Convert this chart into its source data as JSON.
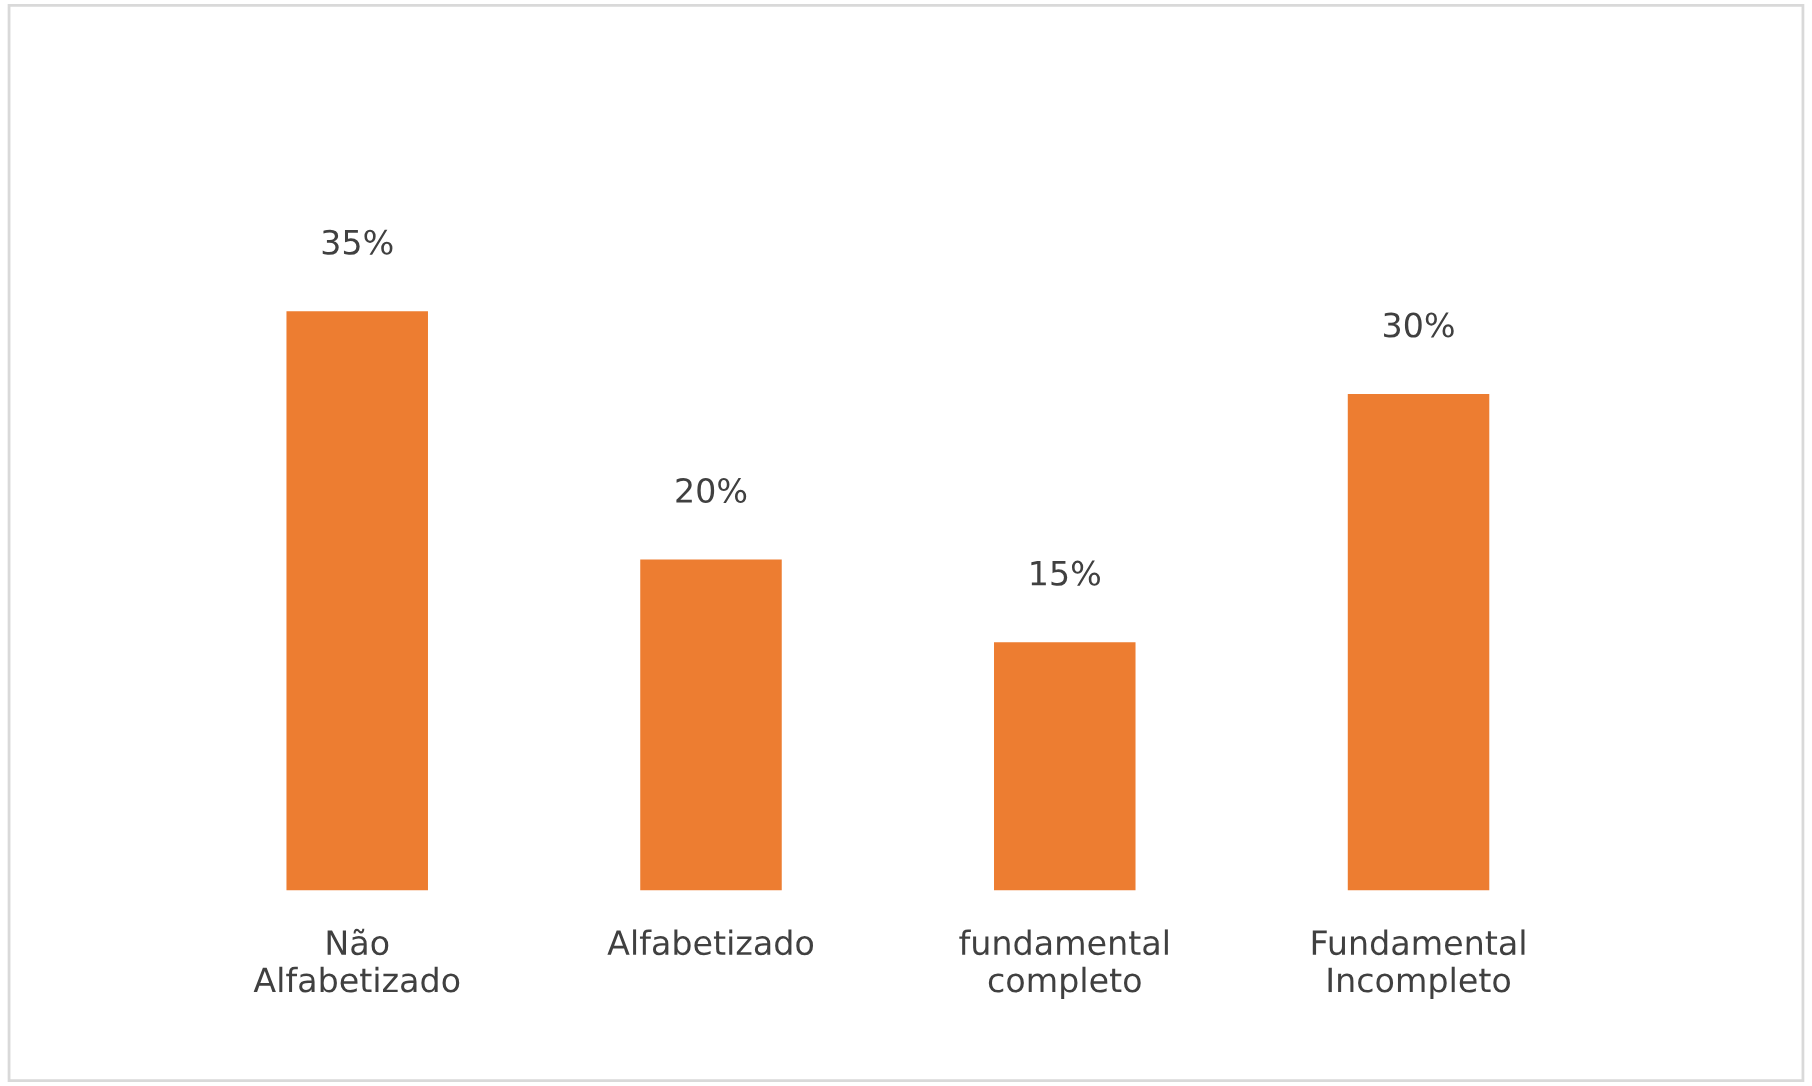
{
  "chart_data": {
    "type": "bar",
    "categories": [
      "Não\nAlfabetizado",
      "Alfabetizado",
      "fundamental\ncompleto",
      "Fundamental\nIncompleto"
    ],
    "values": [
      35,
      20,
      15,
      30
    ],
    "value_labels": [
      "35%",
      "20%",
      "15%",
      "30%"
    ],
    "color": "#ed7d31"
  }
}
